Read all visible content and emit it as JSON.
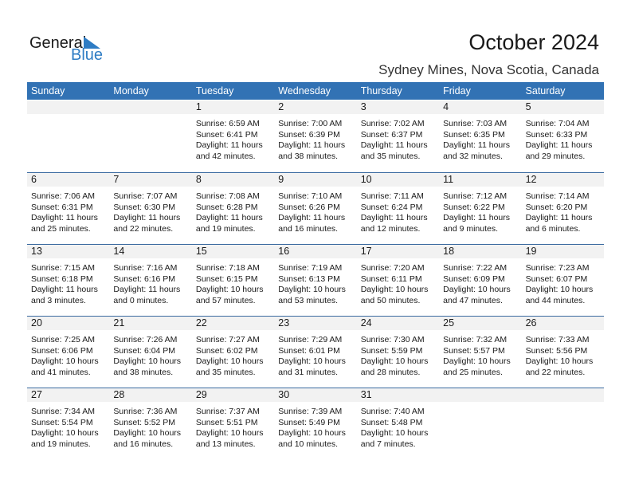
{
  "logo": {
    "general": "General",
    "blue": "Blue"
  },
  "title": "October 2024",
  "subtitle": "Sydney Mines, Nova Scotia, Canada",
  "colors": {
    "header": "#3272b4",
    "logo_blue": "#2e7cc4",
    "dayrow": "#f2f2f2"
  },
  "weekdays": [
    "Sunday",
    "Monday",
    "Tuesday",
    "Wednesday",
    "Thursday",
    "Friday",
    "Saturday"
  ],
  "weeks": [
    [
      null,
      null,
      {
        "day": "1",
        "sunrise": "Sunrise: 6:59 AM",
        "sunset": "Sunset: 6:41 PM",
        "daylight": "Daylight: 11 hours",
        "minutes": "and 42 minutes."
      },
      {
        "day": "2",
        "sunrise": "Sunrise: 7:00 AM",
        "sunset": "Sunset: 6:39 PM",
        "daylight": "Daylight: 11 hours",
        "minutes": "and 38 minutes."
      },
      {
        "day": "3",
        "sunrise": "Sunrise: 7:02 AM",
        "sunset": "Sunset: 6:37 PM",
        "daylight": "Daylight: 11 hours",
        "minutes": "and 35 minutes."
      },
      {
        "day": "4",
        "sunrise": "Sunrise: 7:03 AM",
        "sunset": "Sunset: 6:35 PM",
        "daylight": "Daylight: 11 hours",
        "minutes": "and 32 minutes."
      },
      {
        "day": "5",
        "sunrise": "Sunrise: 7:04 AM",
        "sunset": "Sunset: 6:33 PM",
        "daylight": "Daylight: 11 hours",
        "minutes": "and 29 minutes."
      }
    ],
    [
      {
        "day": "6",
        "sunrise": "Sunrise: 7:06 AM",
        "sunset": "Sunset: 6:31 PM",
        "daylight": "Daylight: 11 hours",
        "minutes": "and 25 minutes."
      },
      {
        "day": "7",
        "sunrise": "Sunrise: 7:07 AM",
        "sunset": "Sunset: 6:30 PM",
        "daylight": "Daylight: 11 hours",
        "minutes": "and 22 minutes."
      },
      {
        "day": "8",
        "sunrise": "Sunrise: 7:08 AM",
        "sunset": "Sunset: 6:28 PM",
        "daylight": "Daylight: 11 hours",
        "minutes": "and 19 minutes."
      },
      {
        "day": "9",
        "sunrise": "Sunrise: 7:10 AM",
        "sunset": "Sunset: 6:26 PM",
        "daylight": "Daylight: 11 hours",
        "minutes": "and 16 minutes."
      },
      {
        "day": "10",
        "sunrise": "Sunrise: 7:11 AM",
        "sunset": "Sunset: 6:24 PM",
        "daylight": "Daylight: 11 hours",
        "minutes": "and 12 minutes."
      },
      {
        "day": "11",
        "sunrise": "Sunrise: 7:12 AM",
        "sunset": "Sunset: 6:22 PM",
        "daylight": "Daylight: 11 hours",
        "minutes": "and 9 minutes."
      },
      {
        "day": "12",
        "sunrise": "Sunrise: 7:14 AM",
        "sunset": "Sunset: 6:20 PM",
        "daylight": "Daylight: 11 hours",
        "minutes": "and 6 minutes."
      }
    ],
    [
      {
        "day": "13",
        "sunrise": "Sunrise: 7:15 AM",
        "sunset": "Sunset: 6:18 PM",
        "daylight": "Daylight: 11 hours",
        "minutes": "and 3 minutes."
      },
      {
        "day": "14",
        "sunrise": "Sunrise: 7:16 AM",
        "sunset": "Sunset: 6:16 PM",
        "daylight": "Daylight: 11 hours",
        "minutes": "and 0 minutes."
      },
      {
        "day": "15",
        "sunrise": "Sunrise: 7:18 AM",
        "sunset": "Sunset: 6:15 PM",
        "daylight": "Daylight: 10 hours",
        "minutes": "and 57 minutes."
      },
      {
        "day": "16",
        "sunrise": "Sunrise: 7:19 AM",
        "sunset": "Sunset: 6:13 PM",
        "daylight": "Daylight: 10 hours",
        "minutes": "and 53 minutes."
      },
      {
        "day": "17",
        "sunrise": "Sunrise: 7:20 AM",
        "sunset": "Sunset: 6:11 PM",
        "daylight": "Daylight: 10 hours",
        "minutes": "and 50 minutes."
      },
      {
        "day": "18",
        "sunrise": "Sunrise: 7:22 AM",
        "sunset": "Sunset: 6:09 PM",
        "daylight": "Daylight: 10 hours",
        "minutes": "and 47 minutes."
      },
      {
        "day": "19",
        "sunrise": "Sunrise: 7:23 AM",
        "sunset": "Sunset: 6:07 PM",
        "daylight": "Daylight: 10 hours",
        "minutes": "and 44 minutes."
      }
    ],
    [
      {
        "day": "20",
        "sunrise": "Sunrise: 7:25 AM",
        "sunset": "Sunset: 6:06 PM",
        "daylight": "Daylight: 10 hours",
        "minutes": "and 41 minutes."
      },
      {
        "day": "21",
        "sunrise": "Sunrise: 7:26 AM",
        "sunset": "Sunset: 6:04 PM",
        "daylight": "Daylight: 10 hours",
        "minutes": "and 38 minutes."
      },
      {
        "day": "22",
        "sunrise": "Sunrise: 7:27 AM",
        "sunset": "Sunset: 6:02 PM",
        "daylight": "Daylight: 10 hours",
        "minutes": "and 35 minutes."
      },
      {
        "day": "23",
        "sunrise": "Sunrise: 7:29 AM",
        "sunset": "Sunset: 6:01 PM",
        "daylight": "Daylight: 10 hours",
        "minutes": "and 31 minutes."
      },
      {
        "day": "24",
        "sunrise": "Sunrise: 7:30 AM",
        "sunset": "Sunset: 5:59 PM",
        "daylight": "Daylight: 10 hours",
        "minutes": "and 28 minutes."
      },
      {
        "day": "25",
        "sunrise": "Sunrise: 7:32 AM",
        "sunset": "Sunset: 5:57 PM",
        "daylight": "Daylight: 10 hours",
        "minutes": "and 25 minutes."
      },
      {
        "day": "26",
        "sunrise": "Sunrise: 7:33 AM",
        "sunset": "Sunset: 5:56 PM",
        "daylight": "Daylight: 10 hours",
        "minutes": "and 22 minutes."
      }
    ],
    [
      {
        "day": "27",
        "sunrise": "Sunrise: 7:34 AM",
        "sunset": "Sunset: 5:54 PM",
        "daylight": "Daylight: 10 hours",
        "minutes": "and 19 minutes."
      },
      {
        "day": "28",
        "sunrise": "Sunrise: 7:36 AM",
        "sunset": "Sunset: 5:52 PM",
        "daylight": "Daylight: 10 hours",
        "minutes": "and 16 minutes."
      },
      {
        "day": "29",
        "sunrise": "Sunrise: 7:37 AM",
        "sunset": "Sunset: 5:51 PM",
        "daylight": "Daylight: 10 hours",
        "minutes": "and 13 minutes."
      },
      {
        "day": "30",
        "sunrise": "Sunrise: 7:39 AM",
        "sunset": "Sunset: 5:49 PM",
        "daylight": "Daylight: 10 hours",
        "minutes": "and 10 minutes."
      },
      {
        "day": "31",
        "sunrise": "Sunrise: 7:40 AM",
        "sunset": "Sunset: 5:48 PM",
        "daylight": "Daylight: 10 hours",
        "minutes": "and 7 minutes."
      },
      null,
      null
    ]
  ]
}
